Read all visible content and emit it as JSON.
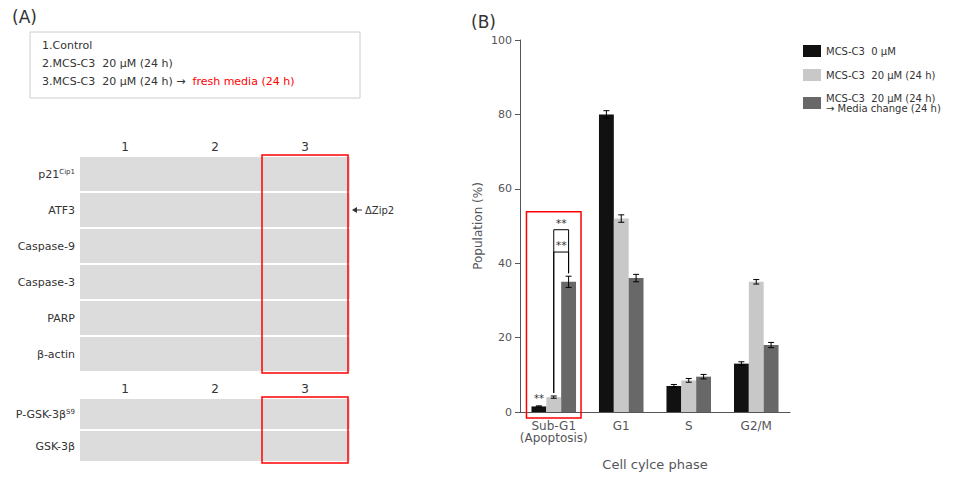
{
  "chart_data": [
    {
      "type": "blot",
      "title": "(A)",
      "annotations": [
        [
          {
            "text": "1.Control"
          }
        ],
        [
          {
            "text": "2.MCS-C3  20 μM (24 h)"
          }
        ],
        [
          {
            "text": "3.MCS-C3  20 μM (24 h) →  "
          },
          {
            "text": "fresh media (24 h)",
            "color": "red"
          }
        ]
      ],
      "categories": [
        "1",
        "2",
        "3"
      ],
      "rows": [
        {
          "label": "p21",
          "sup": "Cip1"
        },
        {
          "label": "ATF3",
          "note": "ΔZip2"
        },
        {
          "label": "Caspase-9"
        },
        {
          "label": "Caspase-3"
        },
        {
          "label": "PARP"
        },
        {
          "label": "β-actin"
        }
      ],
      "lower_rows": [
        {
          "label": "P-GSK-3β",
          "sup": "S9"
        },
        {
          "label": "GSK-3β"
        }
      ],
      "highlight": {
        "category": "3",
        "color": "red"
      }
    },
    {
      "type": "bar",
      "title": "(B)",
      "categories": [
        "Sub-G1\n(Apoptosis)",
        "G1",
        "S",
        "G2/M"
      ],
      "series": [
        {
          "name": "MCS-C3  0 μM",
          "color": "#111111",
          "values": [
            1.5,
            80,
            7,
            13
          ],
          "errors": [
            0.15,
            1.0,
            0.4,
            0.5
          ]
        },
        {
          "name": "MCS-C3  20 μM (24 h)",
          "color": "#c8c8c8",
          "values": [
            4,
            52,
            8.5,
            35
          ],
          "errors": [
            0.3,
            1.0,
            0.5,
            0.6
          ]
        },
        {
          "name": "MCS-C3  20 μM (24 h)\n→ Media change (24 h)",
          "color": "#686868",
          "values": [
            35,
            36,
            9.5,
            18
          ],
          "errors": [
            1.5,
            1.0,
            0.6,
            0.7
          ]
        }
      ],
      "xlabel": "Cell cylce phase",
      "ylabel": "Population (%)",
      "ylim": [
        0,
        100
      ],
      "yticks": [
        0,
        20,
        40,
        60,
        80,
        100
      ],
      "grid": false,
      "legend": "upper right",
      "highlight": {
        "category": "Sub-G1\n(Apoptosis)",
        "color": "red"
      },
      "annotations": [
        {
          "text": "**",
          "category": "Sub-G1\n(Apoptosis)",
          "series": [
            "MCS-C3  20 μM (24 h)",
            "MCS-C3  20 μM (24 h)\n→ Media change (24 h)"
          ],
          "y": 49
        },
        {
          "text": "**",
          "category": "Sub-G1\n(Apoptosis)",
          "series": [
            "MCS-C3  20 μM (24 h)",
            "MCS-C3  20 μM (24 h)\n→ Media change (24 h)"
          ],
          "y": 43
        },
        {
          "text": "**",
          "category": "Sub-G1\n(Apoptosis)",
          "series": [
            "MCS-C3  0 μM"
          ]
        }
      ]
    }
  ]
}
